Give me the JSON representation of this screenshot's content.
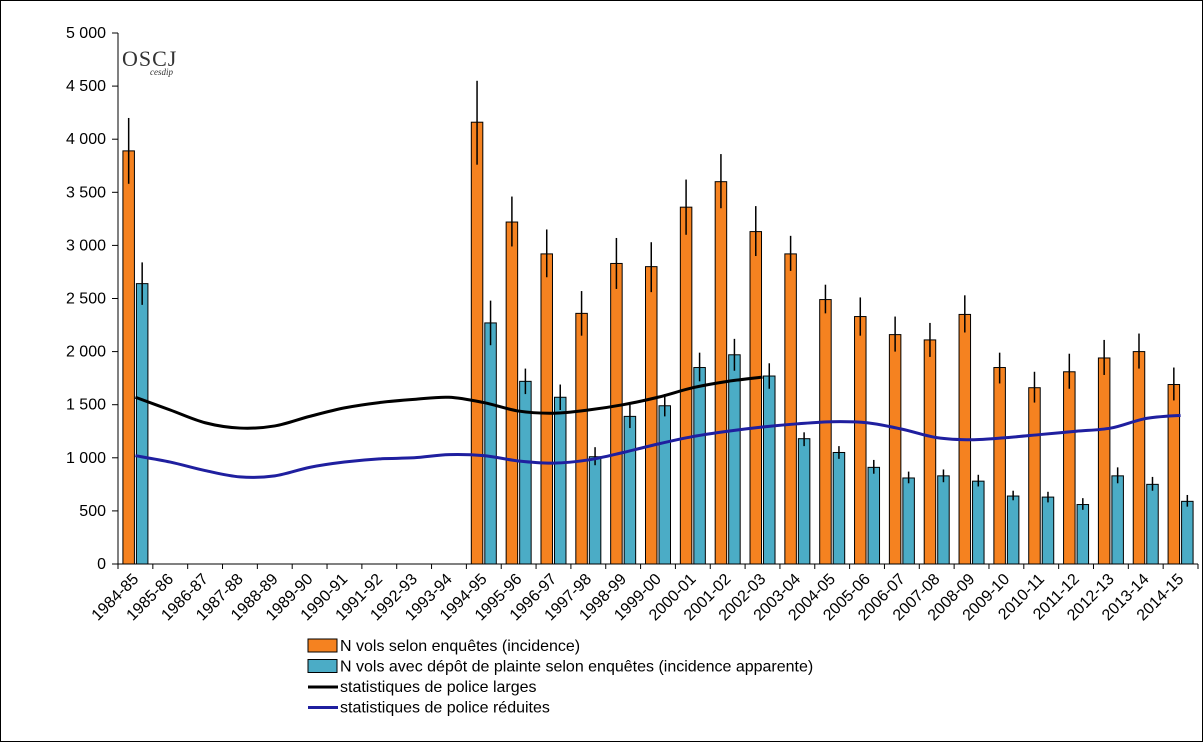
{
  "logo": {
    "main": "OSCJ",
    "sub": "cesdip"
  },
  "colors": {
    "enquetes": "#F58220",
    "plainte": "#4BACC6",
    "police_larges": "#000000",
    "police_reduites": "#1F1F9F",
    "error_bar": "#000000"
  },
  "chart_data": {
    "type": "bar",
    "categories": [
      "1984-85",
      "1985-86",
      "1986-87",
      "1987-88",
      "1988-89",
      "1989-90",
      "1990-91",
      "1991-92",
      "1992-93",
      "1993-94",
      "1994-95",
      "1995-96",
      "1996-97",
      "1997-98",
      "1998-99",
      "1999-00",
      "2000-01",
      "2001-02",
      "2002-03",
      "2003-04",
      "2004-05",
      "2005-06",
      "2006-07",
      "2007-08",
      "2008-09",
      "2009-10",
      "2010-11",
      "2011-12",
      "2012-13",
      "2013-14",
      "2014-15"
    ],
    "ylim": [
      0,
      5000
    ],
    "yticks": [
      0,
      500,
      1000,
      1500,
      2000,
      2500,
      3000,
      3500,
      4000,
      4500,
      5000
    ],
    "ytick_labels": [
      "0",
      "500",
      "1 000",
      "1 500",
      "2 000",
      "2 500",
      "3 000",
      "3 500",
      "4 000",
      "4 500",
      "5 000"
    ],
    "grid": false,
    "legend_position": "bottom",
    "series": [
      {
        "name": "N vols selon enquêtes (incidence)",
        "kind": "bar",
        "values": [
          3890,
          null,
          null,
          null,
          null,
          null,
          null,
          null,
          null,
          null,
          4160,
          3220,
          2920,
          2360,
          2830,
          2800,
          3360,
          3600,
          3130,
          2920,
          2490,
          2330,
          2160,
          2110,
          2350,
          1850,
          1660,
          1810,
          1940,
          2000,
          1690
        ],
        "err_low": [
          3580,
          null,
          null,
          null,
          null,
          null,
          null,
          null,
          null,
          null,
          3760,
          2990,
          2700,
          2150,
          2590,
          2560,
          3100,
          3350,
          2900,
          2760,
          2360,
          2150,
          2000,
          1950,
          2180,
          1700,
          1520,
          1650,
          1780,
          1840,
          1540
        ],
        "err_high": [
          4200,
          null,
          null,
          null,
          null,
          null,
          null,
          null,
          null,
          null,
          4550,
          3460,
          3150,
          2570,
          3070,
          3030,
          3620,
          3860,
          3370,
          3090,
          2630,
          2510,
          2330,
          2270,
          2530,
          1990,
          1810,
          1980,
          2110,
          2170,
          1850
        ]
      },
      {
        "name": "N vols avec dépôt de plainte selon enquêtes (incidence apparente)",
        "kind": "bar",
        "values": [
          2640,
          null,
          null,
          null,
          null,
          null,
          null,
          null,
          null,
          null,
          2270,
          1720,
          1570,
          1010,
          1390,
          1490,
          1850,
          1970,
          1770,
          1180,
          1050,
          910,
          810,
          830,
          780,
          640,
          630,
          560,
          830,
          750,
          590
        ],
        "err_low": [
          2440,
          null,
          null,
          null,
          null,
          null,
          null,
          null,
          null,
          null,
          2060,
          1600,
          1450,
          930,
          1280,
          1390,
          1720,
          1820,
          1650,
          1110,
          990,
          850,
          760,
          770,
          730,
          600,
          580,
          510,
          760,
          690,
          540
        ],
        "err_high": [
          2840,
          null,
          null,
          null,
          null,
          null,
          null,
          null,
          null,
          null,
          2480,
          1840,
          1690,
          1100,
          1500,
          1600,
          1990,
          2120,
          1890,
          1240,
          1110,
          980,
          870,
          890,
          840,
          690,
          680,
          620,
          910,
          820,
          650
        ]
      },
      {
        "name": "statistiques de police larges",
        "kind": "line",
        "values": [
          1570,
          1450,
          1330,
          1280,
          1300,
          1390,
          1470,
          1520,
          1550,
          1570,
          1520,
          1440,
          1420,
          1450,
          1500,
          1570,
          1660,
          1720,
          1760,
          null,
          null,
          null,
          null,
          null,
          null,
          null,
          null,
          null,
          null,
          null,
          null
        ]
      },
      {
        "name": "statistiques de police réduites",
        "kind": "line",
        "values": [
          1020,
          960,
          880,
          820,
          830,
          910,
          960,
          990,
          1000,
          1030,
          1020,
          970,
          950,
          980,
          1050,
          1130,
          1200,
          1250,
          1290,
          1320,
          1340,
          1330,
          1270,
          1190,
          1170,
          1190,
          1220,
          1250,
          1280,
          1370,
          1400
        ]
      }
    ]
  }
}
